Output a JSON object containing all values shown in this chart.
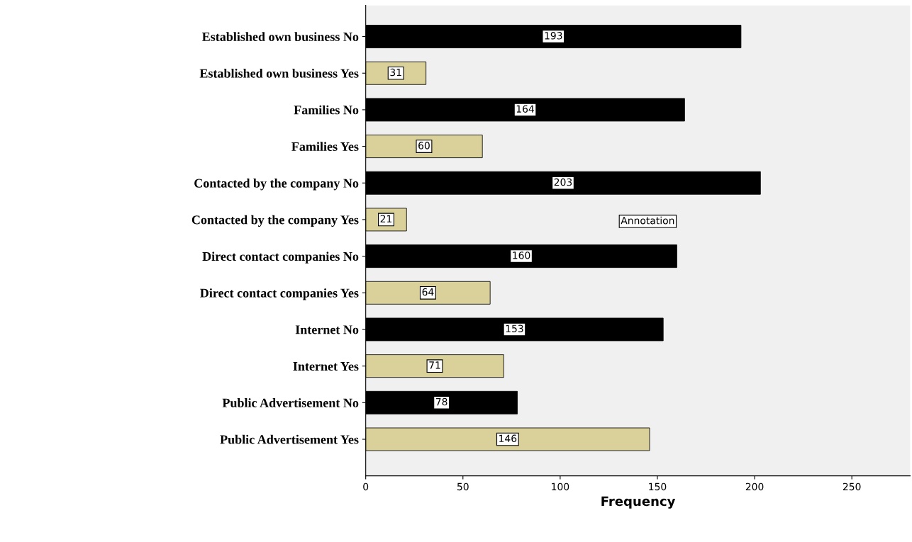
{
  "chart_data": {
    "type": "bar",
    "orientation": "horizontal",
    "xlabel": "Frequency",
    "categories": [
      "Established own business No",
      "Established own business Yes",
      "Families No",
      "Families Yes",
      "Contacted by the company No",
      "Contacted by the company Yes",
      "Direct contact companies No",
      "Direct contact companies Yes",
      "Internet No",
      "Internet Yes",
      "Public Advertisement No",
      "Public Advertisement Yes"
    ],
    "values": [
      193,
      31,
      164,
      60,
      203,
      21,
      160,
      64,
      153,
      71,
      78,
      146
    ],
    "colors": [
      "#000000",
      "#d9d09a",
      "#000000",
      "#d9d09a",
      "#000000",
      "#d9d09a",
      "#000000",
      "#d9d09a",
      "#000000",
      "#d9d09a",
      "#000000",
      "#d9d09a"
    ],
    "xlim": [
      0,
      280
    ],
    "xticks": [
      0,
      50,
      100,
      150,
      200,
      250
    ],
    "grid": false,
    "data_labels": true,
    "annotations": [
      "Annotation"
    ]
  }
}
